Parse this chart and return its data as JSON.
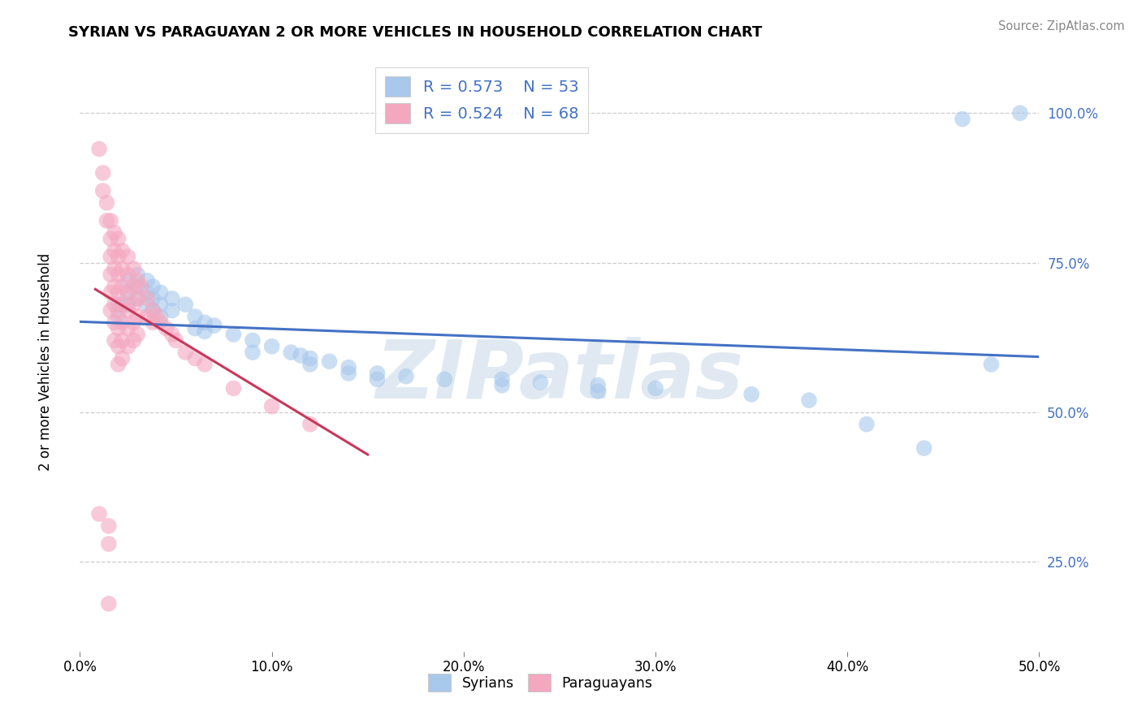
{
  "title": "SYRIAN VS PARAGUAYAN 2 OR MORE VEHICLES IN HOUSEHOLD CORRELATION CHART",
  "source": "Source: ZipAtlas.com",
  "ylabel": "2 or more Vehicles in Household",
  "xlim": [
    0.0,
    0.5
  ],
  "ylim": [
    0.1,
    1.08
  ],
  "xtick_labels": [
    "0.0%",
    "10.0%",
    "20.0%",
    "30.0%",
    "40.0%",
    "50.0%"
  ],
  "xtick_vals": [
    0.0,
    0.1,
    0.2,
    0.3,
    0.4,
    0.5
  ],
  "ytick_labels": [
    "25.0%",
    "50.0%",
    "75.0%",
    "100.0%"
  ],
  "ytick_vals": [
    0.25,
    0.5,
    0.75,
    1.0
  ],
  "syrian_R": "0.573",
  "syrian_N": "53",
  "paraguayan_R": "0.524",
  "paraguayan_N": "68",
  "syrian_dot_color": "#a8c8ec",
  "paraguayan_dot_color": "#f4a8c0",
  "syrian_line_color": "#4472c4",
  "paraguayan_line_color": "#c8385a",
  "watermark_text": "ZIPatlas",
  "watermark_color": "#c8d8e8",
  "background_color": "#ffffff",
  "grid_color": "#cccccc",
  "syrian_points": [
    [
      0.02,
      0.68
    ],
    [
      0.02,
      0.66
    ],
    [
      0.025,
      0.72
    ],
    [
      0.025,
      0.7
    ],
    [
      0.025,
      0.68
    ],
    [
      0.03,
      0.73
    ],
    [
      0.03,
      0.71
    ],
    [
      0.03,
      0.69
    ],
    [
      0.035,
      0.72
    ],
    [
      0.035,
      0.7
    ],
    [
      0.035,
      0.68
    ],
    [
      0.038,
      0.71
    ],
    [
      0.038,
      0.69
    ],
    [
      0.038,
      0.67
    ],
    [
      0.042,
      0.7
    ],
    [
      0.042,
      0.68
    ],
    [
      0.042,
      0.66
    ],
    [
      0.048,
      0.69
    ],
    [
      0.048,
      0.67
    ],
    [
      0.055,
      0.68
    ],
    [
      0.06,
      0.66
    ],
    [
      0.06,
      0.64
    ],
    [
      0.065,
      0.65
    ],
    [
      0.065,
      0.635
    ],
    [
      0.07,
      0.645
    ],
    [
      0.08,
      0.63
    ],
    [
      0.09,
      0.62
    ],
    [
      0.09,
      0.6
    ],
    [
      0.1,
      0.61
    ],
    [
      0.11,
      0.6
    ],
    [
      0.115,
      0.595
    ],
    [
      0.12,
      0.59
    ],
    [
      0.12,
      0.58
    ],
    [
      0.13,
      0.585
    ],
    [
      0.14,
      0.575
    ],
    [
      0.14,
      0.565
    ],
    [
      0.155,
      0.565
    ],
    [
      0.155,
      0.555
    ],
    [
      0.17,
      0.56
    ],
    [
      0.19,
      0.555
    ],
    [
      0.22,
      0.555
    ],
    [
      0.22,
      0.545
    ],
    [
      0.24,
      0.55
    ],
    [
      0.27,
      0.545
    ],
    [
      0.27,
      0.535
    ],
    [
      0.3,
      0.54
    ],
    [
      0.35,
      0.53
    ],
    [
      0.38,
      0.52
    ],
    [
      0.41,
      0.48
    ],
    [
      0.44,
      0.44
    ],
    [
      0.46,
      0.99
    ],
    [
      0.475,
      0.58
    ],
    [
      0.49,
      1.0
    ]
  ],
  "paraguayan_points": [
    [
      0.01,
      0.94
    ],
    [
      0.012,
      0.9
    ],
    [
      0.012,
      0.87
    ],
    [
      0.014,
      0.85
    ],
    [
      0.014,
      0.82
    ],
    [
      0.016,
      0.82
    ],
    [
      0.016,
      0.79
    ],
    [
      0.016,
      0.76
    ],
    [
      0.016,
      0.73
    ],
    [
      0.016,
      0.7
    ],
    [
      0.016,
      0.67
    ],
    [
      0.018,
      0.8
    ],
    [
      0.018,
      0.77
    ],
    [
      0.018,
      0.74
    ],
    [
      0.018,
      0.71
    ],
    [
      0.018,
      0.68
    ],
    [
      0.018,
      0.65
    ],
    [
      0.018,
      0.62
    ],
    [
      0.02,
      0.79
    ],
    [
      0.02,
      0.76
    ],
    [
      0.02,
      0.73
    ],
    [
      0.02,
      0.7
    ],
    [
      0.02,
      0.67
    ],
    [
      0.02,
      0.64
    ],
    [
      0.02,
      0.61
    ],
    [
      0.02,
      0.58
    ],
    [
      0.022,
      0.77
    ],
    [
      0.022,
      0.74
    ],
    [
      0.022,
      0.71
    ],
    [
      0.022,
      0.68
    ],
    [
      0.022,
      0.65
    ],
    [
      0.022,
      0.62
    ],
    [
      0.022,
      0.59
    ],
    [
      0.025,
      0.76
    ],
    [
      0.025,
      0.73
    ],
    [
      0.025,
      0.7
    ],
    [
      0.025,
      0.67
    ],
    [
      0.025,
      0.64
    ],
    [
      0.025,
      0.61
    ],
    [
      0.028,
      0.74
    ],
    [
      0.028,
      0.71
    ],
    [
      0.028,
      0.68
    ],
    [
      0.028,
      0.65
    ],
    [
      0.028,
      0.62
    ],
    [
      0.03,
      0.72
    ],
    [
      0.03,
      0.69
    ],
    [
      0.03,
      0.66
    ],
    [
      0.03,
      0.63
    ],
    [
      0.032,
      0.71
    ],
    [
      0.035,
      0.69
    ],
    [
      0.035,
      0.66
    ],
    [
      0.038,
      0.67
    ],
    [
      0.038,
      0.65
    ],
    [
      0.04,
      0.66
    ],
    [
      0.042,
      0.65
    ],
    [
      0.045,
      0.64
    ],
    [
      0.048,
      0.63
    ],
    [
      0.05,
      0.62
    ],
    [
      0.055,
      0.6
    ],
    [
      0.06,
      0.59
    ],
    [
      0.065,
      0.58
    ],
    [
      0.08,
      0.54
    ],
    [
      0.1,
      0.51
    ],
    [
      0.12,
      0.48
    ],
    [
      0.01,
      0.33
    ],
    [
      0.015,
      0.31
    ],
    [
      0.015,
      0.28
    ],
    [
      0.015,
      0.18
    ]
  ]
}
